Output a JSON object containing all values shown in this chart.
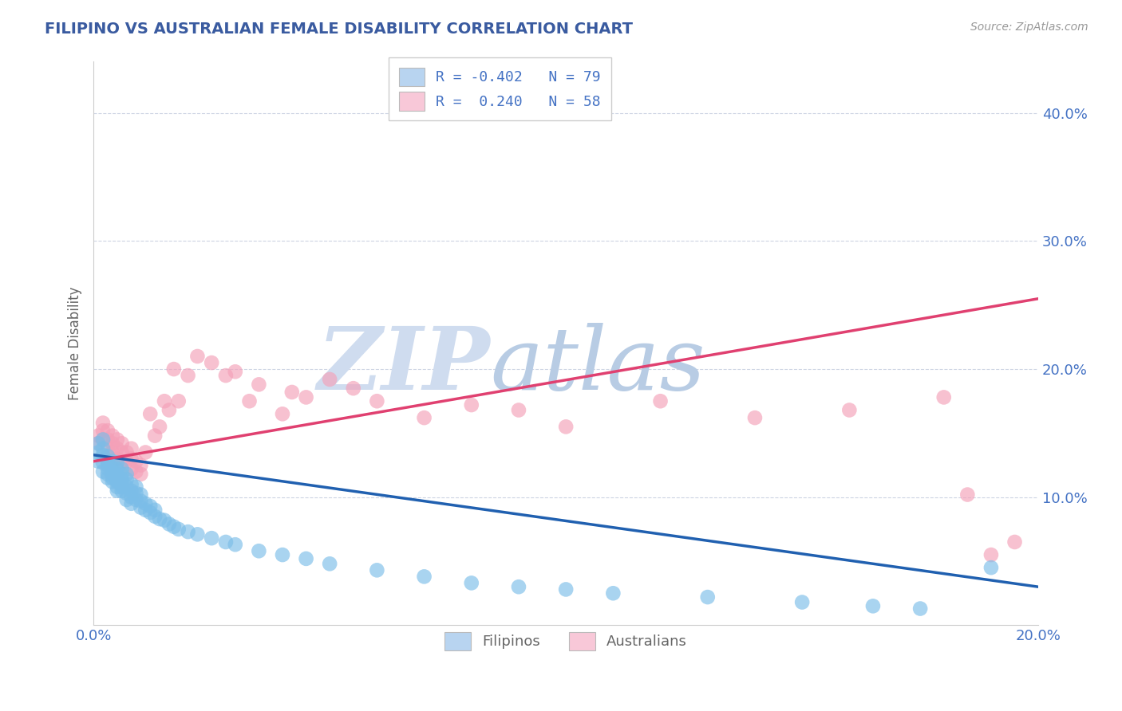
{
  "title": "FILIPINO VS AUSTRALIAN FEMALE DISABILITY CORRELATION CHART",
  "source_text": "Source: ZipAtlas.com",
  "ylabel": "Female Disability",
  "xlim": [
    0.0,
    0.2
  ],
  "ylim": [
    0.0,
    0.44
  ],
  "xtick_labels": [
    "0.0%",
    "20.0%"
  ],
  "xtick_positions": [
    0.0,
    0.2
  ],
  "ytick_labels": [
    "10.0%",
    "20.0%",
    "30.0%",
    "40.0%"
  ],
  "ytick_positions": [
    0.1,
    0.2,
    0.3,
    0.4
  ],
  "filipinos_R": -0.402,
  "filipinos_N": 79,
  "australians_R": 0.24,
  "australians_N": 58,
  "filipino_color": "#7bbde8",
  "australian_color": "#f4a0b8",
  "filipino_line_color": "#2060b0",
  "australian_line_color": "#e04070",
  "legend_filipino_color": "#b8d4f0",
  "legend_australian_color": "#f8c8d8",
  "title_color": "#3a5ba0",
  "axis_label_color": "#666666",
  "tick_color": "#4472c4",
  "watermark_zip_color": "#c8d8ee",
  "watermark_atlas_color": "#b8c8e0",
  "background_color": "#ffffff",
  "grid_color": "#c8d0e0",
  "blue_line_x0": 0.0,
  "blue_line_y0": 0.133,
  "blue_line_x1": 0.2,
  "blue_line_y1": 0.03,
  "pink_line_x0": 0.0,
  "pink_line_y0": 0.128,
  "pink_line_x1": 0.2,
  "pink_line_y1": 0.255,
  "filipinos_x": [
    0.001,
    0.001,
    0.001,
    0.002,
    0.002,
    0.002,
    0.002,
    0.002,
    0.003,
    0.003,
    0.003,
    0.003,
    0.003,
    0.003,
    0.004,
    0.004,
    0.004,
    0.004,
    0.004,
    0.004,
    0.005,
    0.005,
    0.005,
    0.005,
    0.005,
    0.005,
    0.005,
    0.006,
    0.006,
    0.006,
    0.006,
    0.006,
    0.006,
    0.007,
    0.007,
    0.007,
    0.007,
    0.007,
    0.008,
    0.008,
    0.008,
    0.008,
    0.009,
    0.009,
    0.009,
    0.01,
    0.01,
    0.01,
    0.011,
    0.011,
    0.012,
    0.012,
    0.013,
    0.013,
    0.014,
    0.015,
    0.016,
    0.017,
    0.018,
    0.02,
    0.022,
    0.025,
    0.028,
    0.03,
    0.035,
    0.04,
    0.045,
    0.05,
    0.06,
    0.07,
    0.08,
    0.09,
    0.1,
    0.11,
    0.13,
    0.15,
    0.165,
    0.175,
    0.19
  ],
  "filipinos_y": [
    0.135,
    0.128,
    0.142,
    0.12,
    0.127,
    0.133,
    0.138,
    0.145,
    0.115,
    0.122,
    0.128,
    0.132,
    0.118,
    0.125,
    0.112,
    0.118,
    0.123,
    0.128,
    0.115,
    0.12,
    0.108,
    0.113,
    0.118,
    0.122,
    0.127,
    0.112,
    0.105,
    0.108,
    0.114,
    0.118,
    0.122,
    0.105,
    0.11,
    0.103,
    0.108,
    0.114,
    0.118,
    0.098,
    0.1,
    0.105,
    0.11,
    0.095,
    0.098,
    0.103,
    0.108,
    0.092,
    0.097,
    0.102,
    0.09,
    0.095,
    0.088,
    0.093,
    0.085,
    0.09,
    0.083,
    0.082,
    0.079,
    0.077,
    0.075,
    0.073,
    0.071,
    0.068,
    0.065,
    0.063,
    0.058,
    0.055,
    0.052,
    0.048,
    0.043,
    0.038,
    0.033,
    0.03,
    0.028,
    0.025,
    0.022,
    0.018,
    0.015,
    0.013,
    0.045
  ],
  "australians_x": [
    0.001,
    0.001,
    0.002,
    0.002,
    0.002,
    0.003,
    0.003,
    0.003,
    0.004,
    0.004,
    0.004,
    0.005,
    0.005,
    0.005,
    0.006,
    0.006,
    0.006,
    0.007,
    0.007,
    0.008,
    0.008,
    0.008,
    0.009,
    0.009,
    0.01,
    0.01,
    0.011,
    0.012,
    0.013,
    0.014,
    0.015,
    0.016,
    0.017,
    0.018,
    0.02,
    0.022,
    0.025,
    0.028,
    0.03,
    0.033,
    0.035,
    0.04,
    0.042,
    0.045,
    0.05,
    0.055,
    0.06,
    0.07,
    0.08,
    0.09,
    0.1,
    0.12,
    0.14,
    0.16,
    0.18,
    0.185,
    0.19,
    0.195
  ],
  "australians_y": [
    0.148,
    0.142,
    0.152,
    0.145,
    0.158,
    0.138,
    0.145,
    0.152,
    0.135,
    0.142,
    0.148,
    0.13,
    0.138,
    0.145,
    0.128,
    0.135,
    0.142,
    0.128,
    0.135,
    0.122,
    0.13,
    0.138,
    0.12,
    0.128,
    0.118,
    0.125,
    0.135,
    0.165,
    0.148,
    0.155,
    0.175,
    0.168,
    0.2,
    0.175,
    0.195,
    0.21,
    0.205,
    0.195,
    0.198,
    0.175,
    0.188,
    0.165,
    0.182,
    0.178,
    0.192,
    0.185,
    0.175,
    0.162,
    0.172,
    0.168,
    0.155,
    0.175,
    0.162,
    0.168,
    0.178,
    0.102,
    0.055,
    0.065
  ]
}
